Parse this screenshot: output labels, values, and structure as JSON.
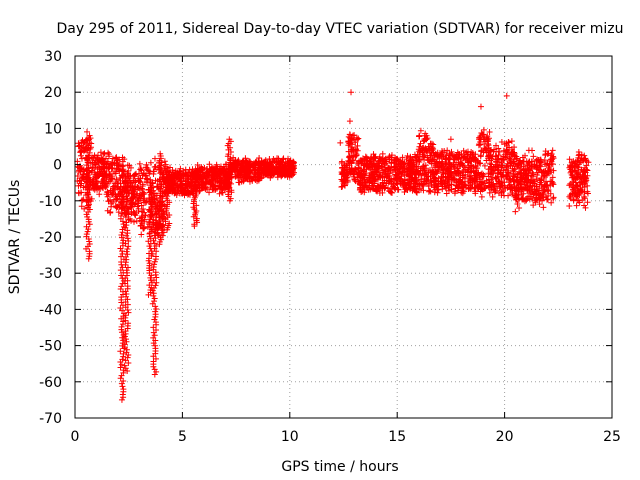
{
  "chart_data": {
    "type": "scatter",
    "title": "Day 295 of 2011, Sidereal Day-to-day VTEC variation (SDTVAR) for receiver mizu",
    "xlabel": "GPS time / hours",
    "ylabel": "SDTVAR / TECUs",
    "xlim": [
      0,
      25
    ],
    "ylim": [
      -70,
      30
    ],
    "xticks": [
      0,
      5,
      10,
      15,
      20,
      25
    ],
    "yticks": [
      -70,
      -60,
      -50,
      -40,
      -30,
      -20,
      -10,
      0,
      10,
      20,
      30
    ],
    "grid": true,
    "marker": "+",
    "series_color": "#ff0000",
    "segments": [
      {
        "x0": 0.1,
        "x1": 0.8,
        "y_low": -10,
        "y_high": 7,
        "jitter": 2.5
      },
      {
        "x0": 0.8,
        "x1": 1.5,
        "y_low": -7,
        "y_high": 2,
        "jitter": 1.5
      },
      {
        "x0": 1.5,
        "x1": 2.3,
        "y_low": -12,
        "y_high": 2,
        "jitter": 1.5
      },
      {
        "x0": 2.3,
        "x1": 3.0,
        "y_low": -14,
        "y_high": -2,
        "jitter": 2
      },
      {
        "x0": 3.0,
        "x1": 4.2,
        "y_low": -18,
        "y_high": 0,
        "jitter": 2
      },
      {
        "x0": 4.2,
        "x1": 5.5,
        "y_low": -8,
        "y_high": -2,
        "jitter": 1.2
      },
      {
        "x0": 5.5,
        "x1": 7.2,
        "y_low": -7,
        "y_high": -1,
        "jitter": 1.2
      },
      {
        "x0": 7.2,
        "x1": 8.6,
        "y_low": -4,
        "y_high": 1,
        "jitter": 1
      },
      {
        "x0": 8.6,
        "x1": 10.2,
        "y_low": -3,
        "y_high": 1,
        "jitter": 0.8
      },
      {
        "x0": 12.4,
        "x1": 12.7,
        "y_low": -6,
        "y_high": 0,
        "jitter": 1
      },
      {
        "x0": 12.7,
        "x1": 13.2,
        "y_low": -4,
        "y_high": 8,
        "jitter": 2
      },
      {
        "x0": 13.2,
        "x1": 16.0,
        "y_low": -7,
        "y_high": 2,
        "jitter": 1
      },
      {
        "x0": 16.0,
        "x1": 16.7,
        "y_low": -6,
        "y_high": 8,
        "jitter": 2
      },
      {
        "x0": 16.7,
        "x1": 18.8,
        "y_low": -7,
        "y_high": 3,
        "jitter": 1
      },
      {
        "x0": 18.8,
        "x1": 19.3,
        "y_low": -7,
        "y_high": 8,
        "jitter": 2
      },
      {
        "x0": 19.3,
        "x1": 20.5,
        "y_low": -8,
        "y_high": 5,
        "jitter": 1.5
      },
      {
        "x0": 20.5,
        "x1": 22.3,
        "y_low": -10,
        "y_high": 2,
        "jitter": 2
      },
      {
        "x0": 23.0,
        "x1": 23.9,
        "y_low": -10,
        "y_high": 2,
        "jitter": 2
      }
    ],
    "spikes": [
      {
        "x": 0.6,
        "min": -26,
        "max": 8
      },
      {
        "x": 2.2,
        "min": -65,
        "max": -3
      },
      {
        "x": 2.4,
        "min": -57,
        "max": -5
      },
      {
        "x": 3.5,
        "min": -36,
        "max": -5
      },
      {
        "x": 3.7,
        "min": -58,
        "max": -8
      },
      {
        "x": 4.0,
        "min": -22,
        "max": 3
      },
      {
        "x": 4.3,
        "min": -18,
        "max": 0
      },
      {
        "x": 5.6,
        "min": -17,
        "max": -5
      },
      {
        "x": 7.2,
        "min": -10,
        "max": 7
      }
    ],
    "outliers": [
      {
        "x": 12.85,
        "y": 20
      },
      {
        "x": 12.35,
        "y": 6
      },
      {
        "x": 12.8,
        "y": 12
      },
      {
        "x": 18.9,
        "y": 16
      },
      {
        "x": 20.1,
        "y": 19
      },
      {
        "x": 19.3,
        "y": 9
      },
      {
        "x": 20.5,
        "y": -13
      },
      {
        "x": 17.5,
        "y": 7
      }
    ]
  }
}
